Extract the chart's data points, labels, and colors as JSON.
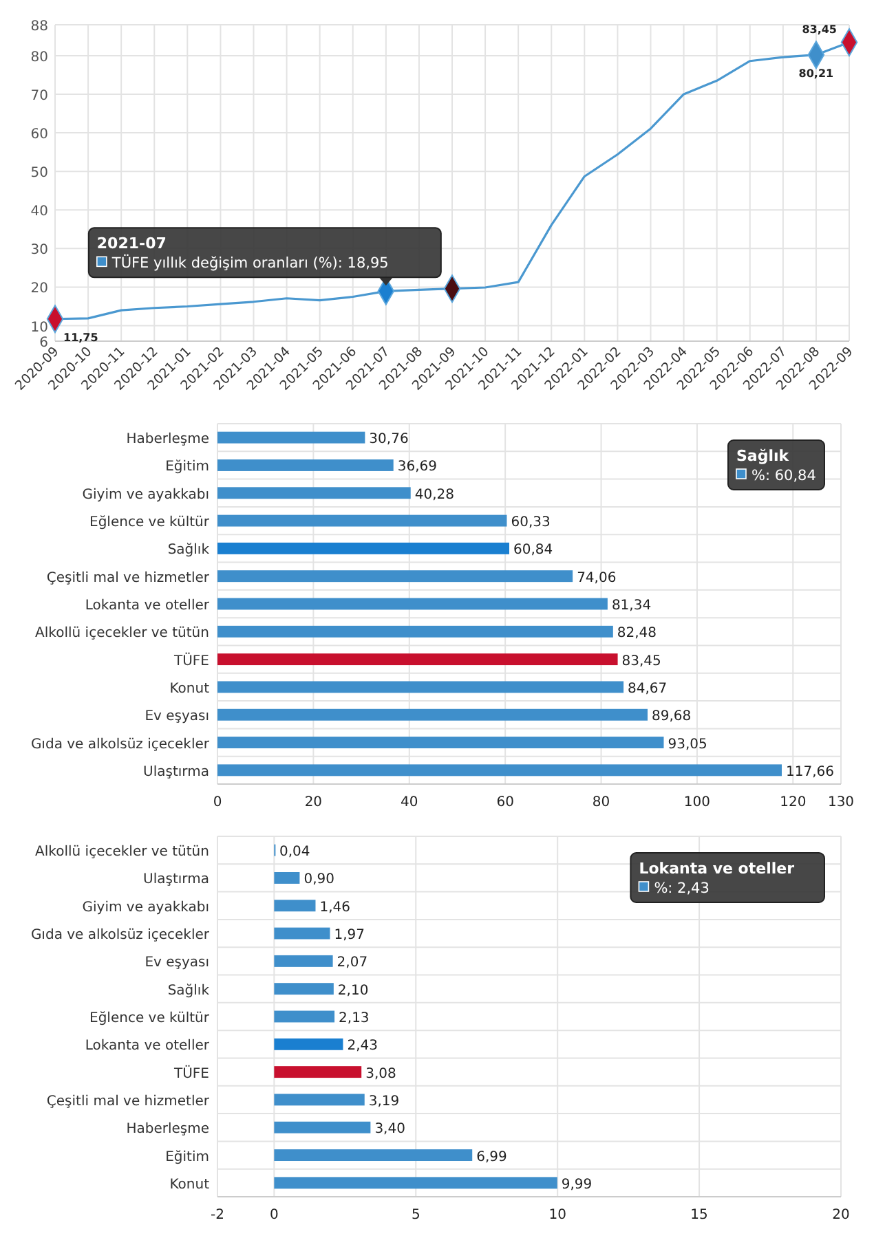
{
  "chart_data": [
    {
      "type": "line",
      "categories": [
        "2020-09",
        "2020-10",
        "2020-11",
        "2020-12",
        "2021-01",
        "2021-02",
        "2021-03",
        "2021-04",
        "2021-05",
        "2021-06",
        "2021-07",
        "2021-08",
        "2021-09",
        "2021-10",
        "2021-11",
        "2021-12",
        "2022-01",
        "2022-02",
        "2022-03",
        "2022-04",
        "2022-05",
        "2022-06",
        "2022-07",
        "2022-08",
        "2022-09"
      ],
      "series": [
        {
          "type": "line",
          "color": "#4a98d0",
          "values": [
            11.75,
            11.9,
            14,
            14.6,
            15,
            15.6,
            16.2,
            17.1,
            16.6,
            17.5,
            18.95,
            19.3,
            19.6,
            19.9,
            21.3,
            36.1,
            48.7,
            54.4,
            61.1,
            70,
            73.5,
            78.6,
            79.6,
            80.21,
            83.45
          ],
          "value_labels": [
            "11,75",
            null,
            null,
            null,
            null,
            null,
            null,
            null,
            null,
            null,
            null,
            null,
            null,
            null,
            null,
            null,
            null,
            null,
            null,
            null,
            null,
            null,
            null,
            "80,21",
            "83,45"
          ]
        },
        {
          "type": "scatter",
          "marker": "diamond",
          "values": [
            11.75,
            null,
            null,
            null,
            null,
            null,
            null,
            null,
            null,
            null,
            18.95,
            null,
            19.6,
            null,
            null,
            null,
            null,
            null,
            null,
            null,
            null,
            null,
            null,
            80.21,
            83.45
          ],
          "colors": [
            "#c8102e",
            null,
            null,
            null,
            null,
            null,
            null,
            null,
            null,
            null,
            "#1a7fd0",
            null,
            "#4a0d12",
            null,
            null,
            null,
            null,
            null,
            null,
            null,
            null,
            null,
            null,
            "#3f8fcb",
            "#c8102e"
          ]
        }
      ],
      "ylim": [
        6,
        88
      ],
      "yticks": [
        6,
        10,
        20,
        30,
        40,
        50,
        60,
        70,
        80,
        88
      ],
      "grid": true,
      "line_style": "solid",
      "annotations": [
        {
          "text": "2021-07\nTÜFE yıllık değişim oranları (%): 18,95",
          "x": "2021-07",
          "y": 18.95
        }
      ]
    },
    {
      "type": "bar",
      "orientation": "horizontal",
      "categories": [
        "Haberleşme",
        "Eğitim",
        "Giyim ve ayakkabı",
        "Eğlence ve kültür",
        "Sağlık",
        "Çeşitli mal ve hizmetler",
        "Lokanta ve oteller",
        "Alkollü içecekler ve tütün",
        "TÜFE",
        "Konut",
        "Ev eşyası",
        "Gıda ve alkolsüz içecekler",
        "Ulaştırma"
      ],
      "values": [
        30.76,
        36.69,
        40.28,
        60.33,
        60.84,
        74.06,
        81.34,
        82.48,
        83.45,
        84.67,
        89.68,
        93.05,
        117.66
      ],
      "value_labels": [
        "30,76",
        "36,69",
        "40,28",
        "60,33",
        "60,84",
        "74,06",
        "81,34",
        "82,48",
        "83,45",
        "84,67",
        "89,68",
        "93,05",
        "117,66"
      ],
      "colors": [
        "#3f8fcb",
        "#3f8fcb",
        "#3f8fcb",
        "#3f8fcb",
        "#1a7fd0",
        "#3f8fcb",
        "#3f8fcb",
        "#3f8fcb",
        "#c8102e",
        "#3f8fcb",
        "#3f8fcb",
        "#3f8fcb",
        "#3f8fcb"
      ],
      "xlim": [
        0,
        130
      ],
      "xticks": [
        0,
        20,
        40,
        60,
        80,
        100,
        120,
        130
      ],
      "grid": true,
      "annotations": [
        "Sağlık\n%: 60,84"
      ]
    },
    {
      "type": "bar",
      "orientation": "horizontal",
      "categories": [
        "Alkollü içecekler ve tütün",
        "Ulaştırma",
        "Giyim ve ayakkabı",
        "Gıda ve alkolsüz içecekler",
        "Ev eşyası",
        "Sağlık",
        "Eğlence ve kültür",
        "Lokanta ve oteller",
        "TÜFE",
        "Çeşitli mal ve hizmetler",
        "Haberleşme",
        "Eğitim",
        "Konut"
      ],
      "values": [
        0.04,
        0.9,
        1.46,
        1.97,
        2.07,
        2.1,
        2.13,
        2.43,
        3.08,
        3.19,
        3.4,
        6.99,
        9.99
      ],
      "value_labels": [
        "0,04",
        "0,90",
        "1,46",
        "1,97",
        "2,07",
        "2,10",
        "2,13",
        "2,43",
        "3,08",
        "3,19",
        "3,40",
        "6,99",
        "9,99"
      ],
      "colors": [
        "#3f8fcb",
        "#3f8fcb",
        "#3f8fcb",
        "#3f8fcb",
        "#3f8fcb",
        "#3f8fcb",
        "#3f8fcb",
        "#1a7fd0",
        "#c8102e",
        "#3f8fcb",
        "#3f8fcb",
        "#3f8fcb",
        "#3f8fcb"
      ],
      "xlim": [
        -2,
        20
      ],
      "xticks": [
        -2,
        0,
        5,
        10,
        15,
        20
      ],
      "grid": true,
      "annotations": [
        "Lokanta ve oteller\n%: 2,43"
      ]
    }
  ]
}
